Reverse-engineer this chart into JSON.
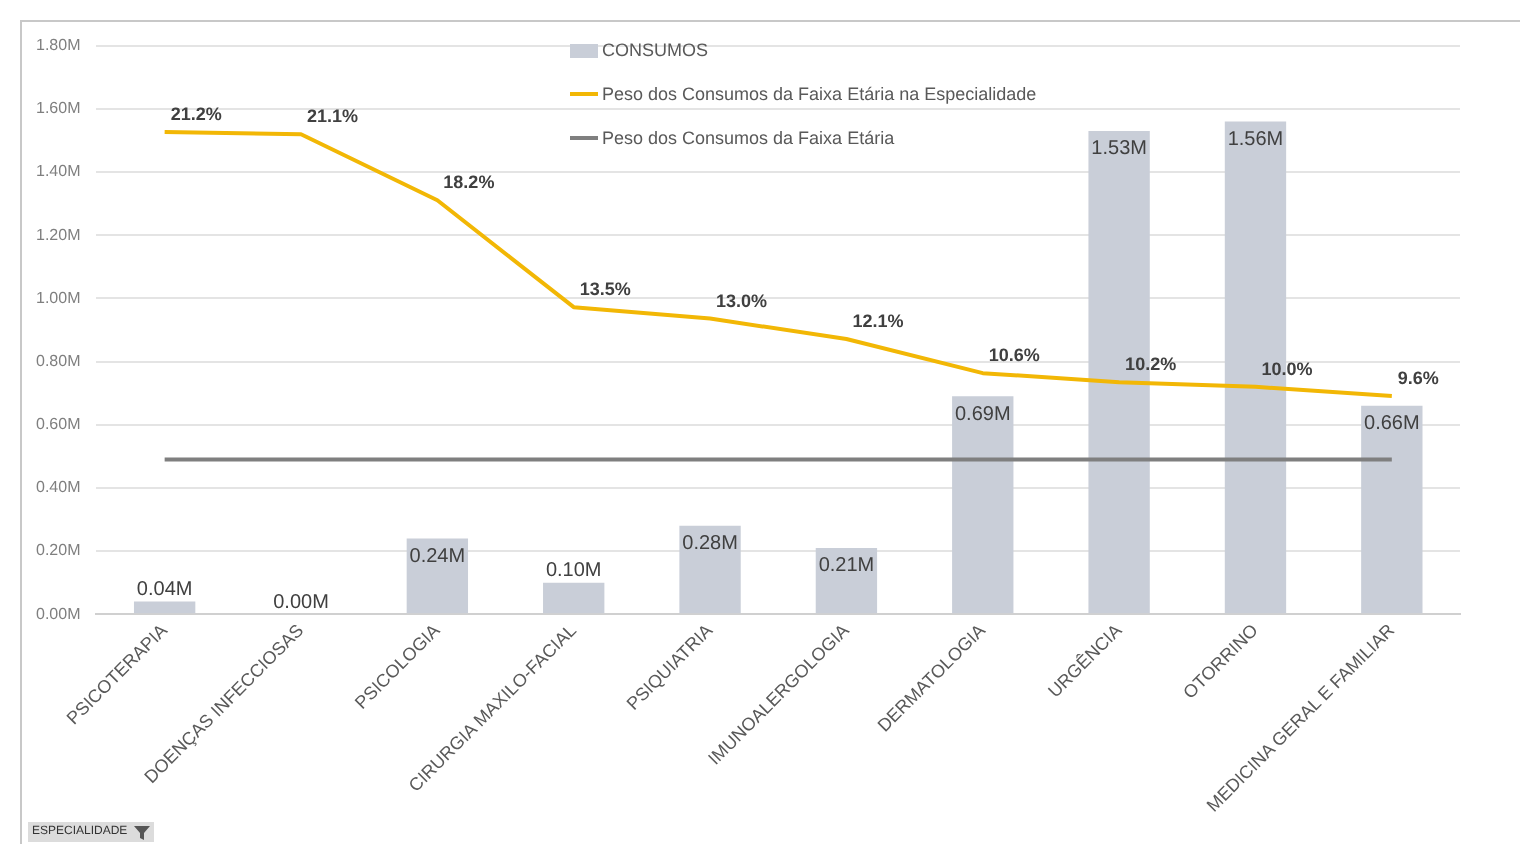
{
  "chart_data": {
    "type": "bar",
    "categories": [
      "PSICOTERAPIA",
      "DOENÇAS INFECCIOSAS",
      "PSICOLOGIA",
      "CIRURGIA MAXILO-FACIAL",
      "PSIQUIATRIA",
      "IMUNOALERGOLOGIA",
      "DERMATOLOGIA",
      "URGÊNCIA",
      "OTORRINO",
      "MEDICINA GERAL E FAMILIAR"
    ],
    "series": [
      {
        "name": "CONSUMOS",
        "color": "#c9ced8",
        "values": [
          0.04,
          0.0,
          0.24,
          0.1,
          0.28,
          0.21,
          0.69,
          1.53,
          1.56,
          0.66
        ],
        "value_labels": [
          "0.04M",
          "0.00M",
          "0.24M",
          "0.10M",
          "0.28M",
          "0.21M",
          "0.69M",
          "1.53M",
          "1.56M",
          "0.66M"
        ]
      },
      {
        "type": "line",
        "name": "Peso dos Consumos da Faixa Etária na Especialidade",
        "color": "#f2b705",
        "axis": "y2",
        "values": [
          21.2,
          21.1,
          18.2,
          13.5,
          13.0,
          12.1,
          10.6,
          10.2,
          10.0,
          9.6
        ],
        "value_labels": [
          "21.2%",
          "21.1%",
          "18.2%",
          "13.5%",
          "13.0%",
          "12.1%",
          "10.6%",
          "10.2%",
          "10.0%",
          "9.6%"
        ]
      },
      {
        "type": "line",
        "name": "Peso dos Consumos da Faixa Etária",
        "color": "#7f7f7f",
        "axis": "y2",
        "values": [
          6.8,
          6.8,
          6.8,
          6.8,
          6.8,
          6.8,
          6.8,
          6.8,
          6.8,
          6.8
        ]
      }
    ],
    "ylim": [
      0,
      1.8
    ],
    "yticks": [
      {
        "value": 0,
        "label": "0.00M"
      },
      {
        "value": 0.2,
        "label": "0.20M"
      },
      {
        "value": 0.4,
        "label": "0.40M"
      },
      {
        "value": 0.6,
        "label": "0.60M"
      },
      {
        "value": 0.8,
        "label": "0.80M"
      },
      {
        "value": 1.0,
        "label": "1.00M"
      },
      {
        "value": 1.2,
        "label": "1.20M"
      },
      {
        "value": 1.4,
        "label": "1.40M"
      },
      {
        "value": 1.6,
        "label": "1.60M"
      },
      {
        "value": 1.8,
        "label": "1.80M"
      }
    ],
    "y2lim": [
      0,
      25
    ],
    "grid": "y",
    "legend": "top",
    "annotations": [
      "ESPECIALIDADE"
    ]
  }
}
